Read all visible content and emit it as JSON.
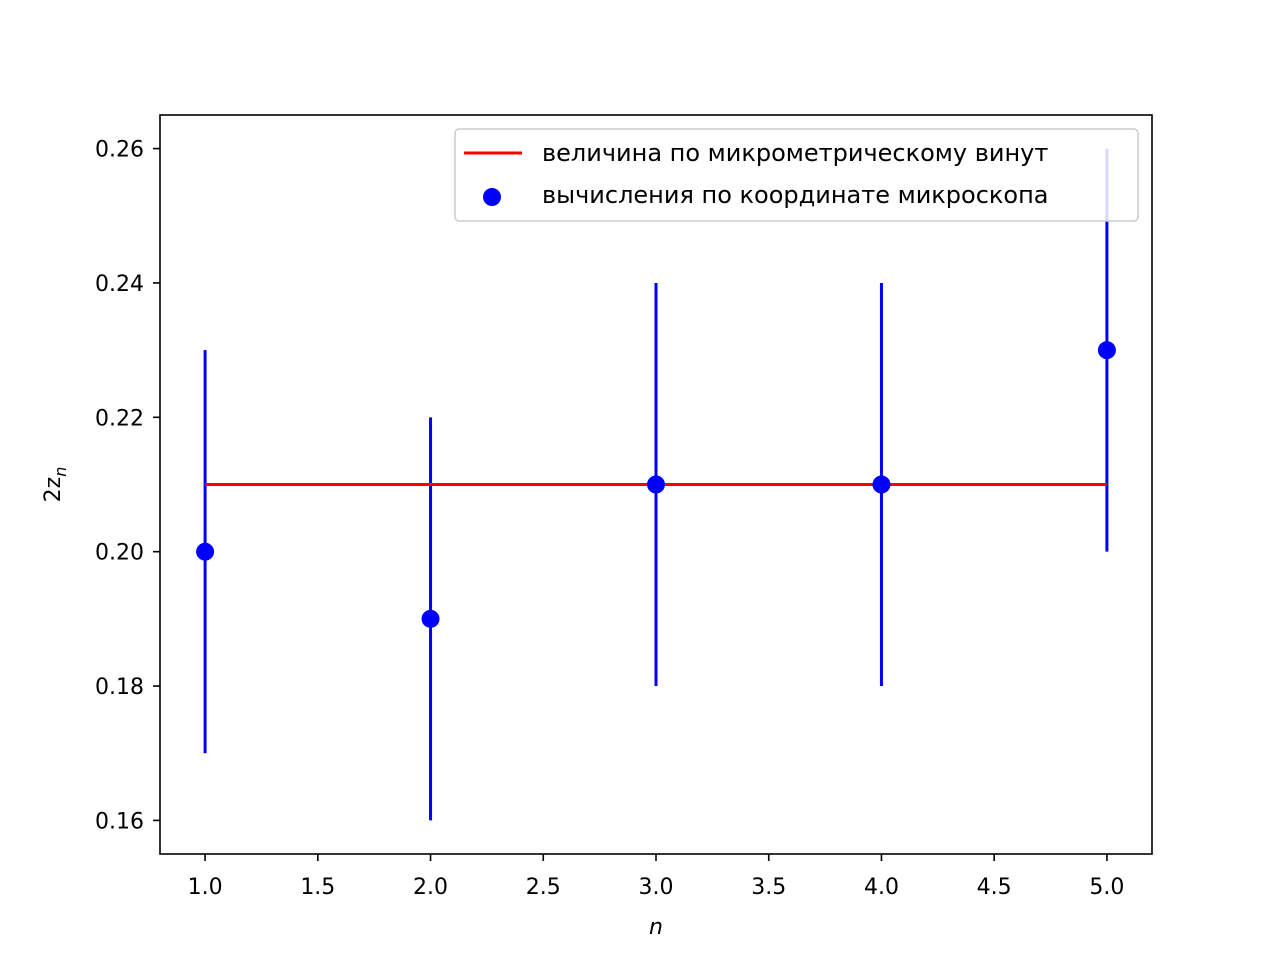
{
  "chart_data": {
    "type": "scatter",
    "title": "",
    "xlabel": "n",
    "ylabel_main": "2z",
    "ylabel_sub": "n",
    "xlim": [
      0.8,
      5.2
    ],
    "ylim": [
      0.155,
      0.265
    ],
    "xticks": [
      1.0,
      1.5,
      2.0,
      2.5,
      3.0,
      3.5,
      4.0,
      4.5,
      5.0
    ],
    "xtick_labels": [
      "1.0",
      "1.5",
      "2.0",
      "2.5",
      "3.0",
      "3.5",
      "4.0",
      "4.5",
      "5.0"
    ],
    "yticks": [
      0.16,
      0.18,
      0.2,
      0.22,
      0.24,
      0.26
    ],
    "ytick_labels": [
      "0.16",
      "0.18",
      "0.20",
      "0.22",
      "0.24",
      "0.26"
    ],
    "grid": false,
    "legend_position": "top-right",
    "series": [
      {
        "name": "величина по микрометрическому винут",
        "kind": "line",
        "color": "#ff0000",
        "x": [
          1,
          5
        ],
        "y": [
          0.21,
          0.21
        ]
      },
      {
        "name": "вычисления по координате микроскопа",
        "kind": "scatter_errorbar",
        "color": "#0000ff",
        "x": [
          1,
          2,
          3,
          4,
          5
        ],
        "y": [
          0.2,
          0.19,
          0.21,
          0.21,
          0.23
        ],
        "yerr": [
          0.03,
          0.03,
          0.03,
          0.03,
          0.03
        ]
      }
    ]
  }
}
